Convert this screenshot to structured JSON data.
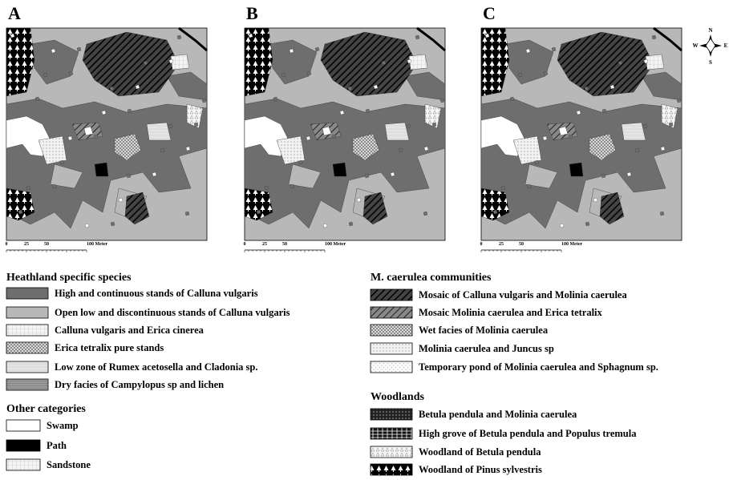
{
  "panels": [
    {
      "label": "A"
    },
    {
      "label": "B"
    },
    {
      "label": "C"
    }
  ],
  "scale": {
    "ticks": [
      "0",
      "25",
      "50",
      "100 Meter"
    ]
  },
  "compass": {
    "n": "N",
    "e": "E",
    "s": "S",
    "w": "W"
  },
  "legend": {
    "sections": [
      {
        "title": "Heathland specific species",
        "items": [
          "High and continuous stands of Calluna vulgaris",
          "Open low and discontinuous stands of Calluna vulgaris",
          "Calluna vulgaris and Erica cinerea",
          "Erica tetralix pure stands",
          "Low zone of Rumex acetosella and Cladonia sp.",
          "Dry facies of Campylopus sp and lichen"
        ]
      },
      {
        "title": "Other categories",
        "items": [
          "Swamp",
          "Path",
          "Sandstone"
        ]
      },
      {
        "title": "M. caerulea communities",
        "items": [
          "Mosaic of Calluna vulgaris and Molinia caerulea",
          "Mosaic Molinia caerulea and Erica tetralix",
          "Wet facies of Molinia caerulea",
          "Molinia caerulea and Juncus sp",
          "Temporary pond of Molinia caerulea and Sphagnum sp."
        ]
      },
      {
        "title": "Woodlands",
        "items": [
          "Betula pendula and Molinia caerulea",
          "High grove of Betula pendula and Populus tremula",
          "Woodland of Betula pendula",
          "Woodland of Pinus sylvestris"
        ]
      }
    ]
  }
}
